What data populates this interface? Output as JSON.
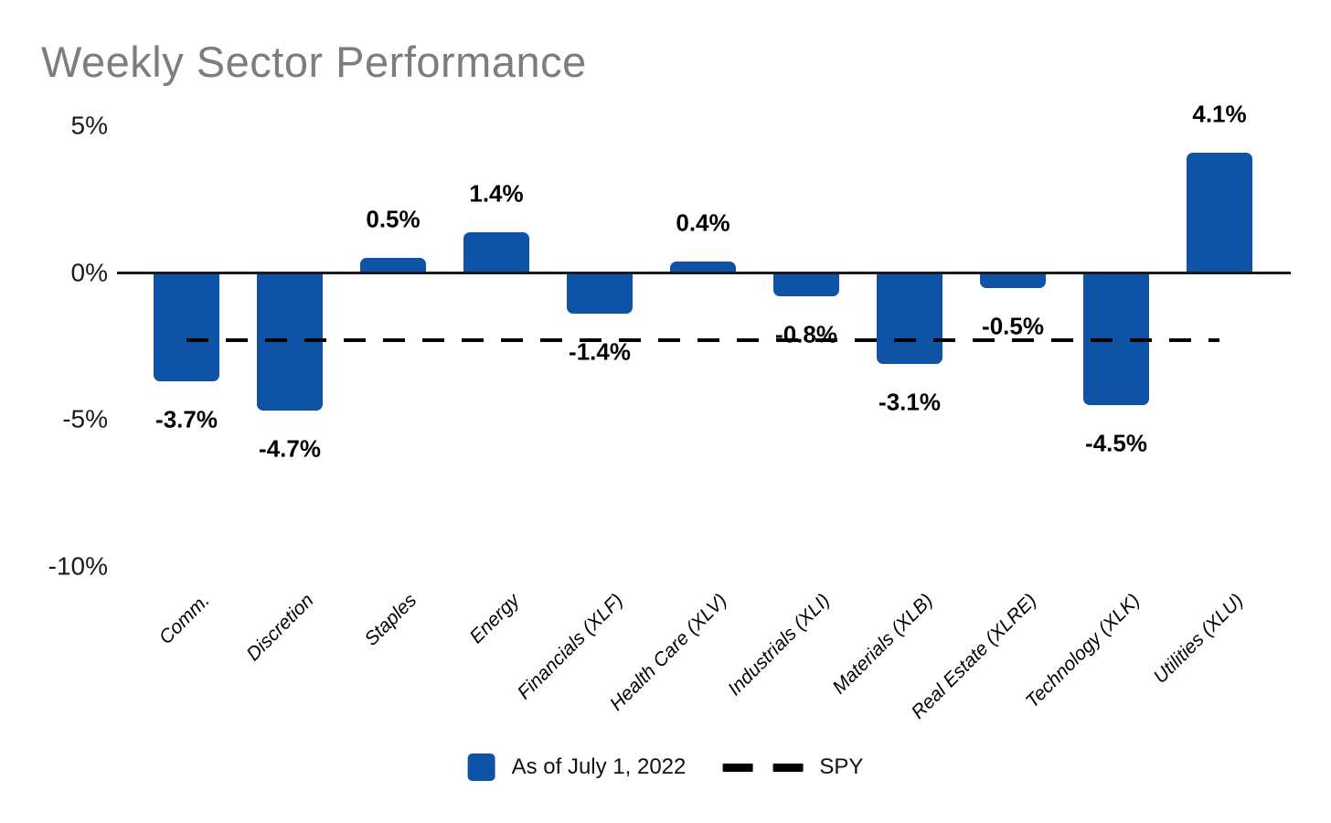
{
  "chart": {
    "title": "Weekly Sector Performance"
  },
  "legend": {
    "series_label": "As of July 1, 2022",
    "series_swatch_icon": "blue-square-icon",
    "spy_dash_icon": "dashed-line-icon",
    "spy_label": "SPY"
  },
  "colors": {
    "bar": "#0E53A6",
    "title": "#7D7D7D",
    "axis": "#1A1A1A",
    "spy_line": "#000000",
    "label_text": "#000000"
  },
  "chart_data": {
    "type": "bar",
    "title": "Weekly Sector Performance",
    "categories": [
      "Comm.",
      "Discretion",
      "Staples",
      "Energy",
      "Financials (XLF)",
      "Health Care (XLV)",
      "Industrials (XLI)",
      "Materials (XLB)",
      "Real Estate (XLRE)",
      "Technology (XLK)",
      "Utilities (XLU)"
    ],
    "values": [
      -3.7,
      -4.7,
      0.5,
      1.4,
      -1.4,
      0.4,
      -0.8,
      -3.1,
      -0.5,
      -4.5,
      4.1
    ],
    "value_labels": [
      "-3.7%",
      "-4.7%",
      "0.5%",
      "1.4%",
      "-1.4%",
      "0.4%",
      "-0.8%",
      "-3.1%",
      "-0.5%",
      "-4.5%",
      "4.1%"
    ],
    "series_name": "As of July 1, 2022",
    "xlabel": "",
    "ylabel": "",
    "y_ticks": [
      {
        "value": 5,
        "label": "5%"
      },
      {
        "value": 0,
        "label": "0%"
      },
      {
        "value": -5,
        "label": "-5%"
      },
      {
        "value": -10,
        "label": "-10%"
      }
    ],
    "ylim": [
      -10,
      5.5
    ],
    "grid": false,
    "legend_position": "bottom-center",
    "reference_line": {
      "name": "SPY",
      "value": -2.3,
      "style": "dashed"
    },
    "bar_color": "#0E53A6",
    "x_tick_style": "italic, rotated 45deg"
  }
}
